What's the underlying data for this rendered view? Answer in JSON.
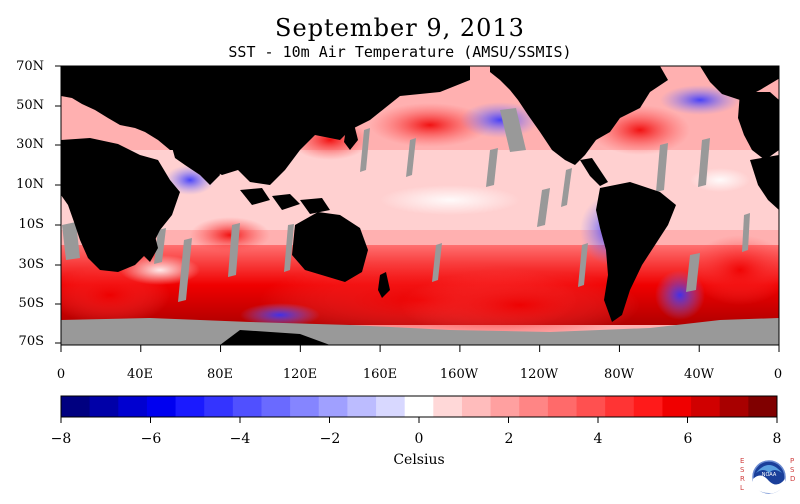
{
  "title": "September 9, 2013",
  "subtitle": "SST - 10m Air Temperature (AMSU/SSMIS)",
  "lat_labels": [
    "70N",
    "50N",
    "30N",
    "10N",
    "10S",
    "30S",
    "50S",
    "70S"
  ],
  "lon_labels": [
    "0",
    "40E",
    "80E",
    "120E",
    "160E",
    "160W",
    "120W",
    "80W",
    "40W",
    "0"
  ],
  "colorbar": {
    "unit_label": "Celsius",
    "tick_labels": [
      "−8",
      "−6",
      "−4",
      "−2",
      "0",
      "2",
      "4",
      "6",
      "8"
    ],
    "range": [
      -8,
      8
    ],
    "colors": [
      "#000080",
      "#0000a8",
      "#0000d0",
      "#0000f0",
      "#1a1aff",
      "#3434ff",
      "#5050ff",
      "#6a6aff",
      "#8585ff",
      "#a0a0ff",
      "#bcbcff",
      "#d8d8ff",
      "#ffffff",
      "#ffd8d8",
      "#ffbcbc",
      "#ffa0a0",
      "#ff8585",
      "#ff6a6a",
      "#ff5050",
      "#ff3434",
      "#ff1a1a",
      "#f00000",
      "#d00000",
      "#a80000",
      "#800000"
    ]
  },
  "colors": {
    "land": "#000000",
    "missing": "#999999"
  },
  "logo": {
    "left_text": "ESRL",
    "right_text": "PSD",
    "center_text": "NOAA"
  }
}
